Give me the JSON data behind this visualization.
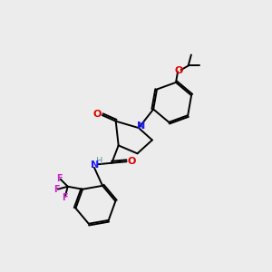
{
  "background_color": "#ececec",
  "bond_color": "#000000",
  "atom_colors": {
    "N": "#1a1aff",
    "O": "#dd0000",
    "F": "#cc22cc",
    "H": "#669999",
    "C": "#000000"
  },
  "figsize": [
    3.0,
    3.0
  ],
  "dpi": 100,
  "lw": 1.4,
  "fs": 8.0,
  "fs_small": 7.0
}
